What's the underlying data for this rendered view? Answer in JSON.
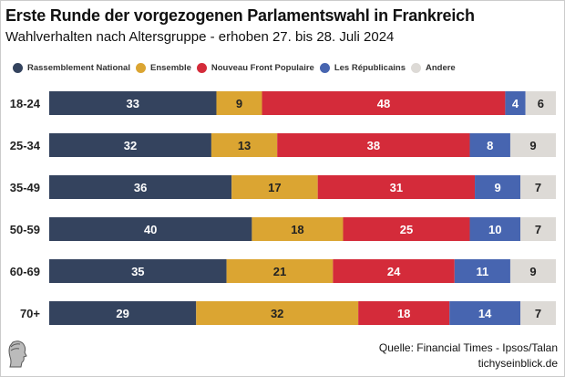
{
  "chart_data": {
    "type": "bar",
    "orientation": "horizontal",
    "stacked": true,
    "title": "Erste Runde der vorgezogenen Parlamentswahl in Frankreich",
    "subtitle": "Wahlverhalten nach Altersgruppe - erhoben 27. bis 28. Juli 2024",
    "categories": [
      "18-24",
      "25-34",
      "35-49",
      "50-59",
      "60-69",
      "70+"
    ],
    "xlim": [
      0,
      100
    ],
    "grid": false,
    "legend_position": "top",
    "series": [
      {
        "name": "Rassemblement National",
        "color": "#34435e",
        "values": [
          33,
          32,
          36,
          40,
          35,
          29
        ]
      },
      {
        "name": "Ensemble",
        "color": "#dba532",
        "values": [
          9,
          13,
          17,
          18,
          21,
          32
        ]
      },
      {
        "name": "Nouveau Front Populaire",
        "color": "#d42b3a",
        "values": [
          48,
          38,
          31,
          25,
          24,
          18
        ]
      },
      {
        "name": "Les Républicains",
        "color": "#4765b0",
        "values": [
          4,
          8,
          9,
          10,
          11,
          14
        ]
      },
      {
        "name": "Andere",
        "color": "#dddad6",
        "values": [
          6,
          9,
          7,
          7,
          9,
          7
        ]
      }
    ]
  },
  "source": "Quelle: Financial Times - Ipsos/Talan",
  "site": "tichyseinblick.de",
  "logo_icon": "classical-head-logo"
}
